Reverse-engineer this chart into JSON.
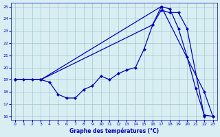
{
  "xlabel": "Graphe des températures (°C)",
  "xlim": [
    -0.5,
    23.5
  ],
  "ylim": [
    15.7,
    25.3
  ],
  "yticks": [
    16,
    17,
    18,
    19,
    20,
    21,
    22,
    23,
    24,
    25
  ],
  "xticks": [
    0,
    1,
    2,
    3,
    4,
    5,
    6,
    7,
    8,
    9,
    10,
    11,
    12,
    13,
    14,
    15,
    16,
    17,
    18,
    19,
    20,
    21,
    22,
    23
  ],
  "background_color": "#d9eef2",
  "line_color": "#0000bb",
  "grid_color": "#a0c8cc",
  "line1_x": [
    0,
    1,
    2,
    3,
    4,
    5,
    6,
    7,
    8,
    9,
    10,
    11,
    12,
    13,
    14,
    15,
    16,
    17,
    18,
    19,
    20,
    21,
    22,
    23
  ],
  "line1_y": [
    19,
    19,
    19,
    19,
    18.8,
    17.8,
    17.5,
    17.5,
    18.2,
    18.5,
    19.3,
    19,
    19.5,
    19.8,
    20.0,
    21.5,
    23.5,
    25.0,
    24.8,
    23.2,
    20.9,
    18.3,
    16.1,
    16.0
  ],
  "line2_x": [
    0,
    3,
    17,
    22,
    23
  ],
  "line2_y": [
    19,
    19,
    25,
    18.0,
    16.0
  ],
  "line3_x": [
    0,
    3,
    16,
    17,
    18,
    19,
    20,
    22
  ],
  "line3_y": [
    19,
    19,
    23.5,
    24.7,
    24.5,
    24.5,
    23.2,
    16.0
  ]
}
